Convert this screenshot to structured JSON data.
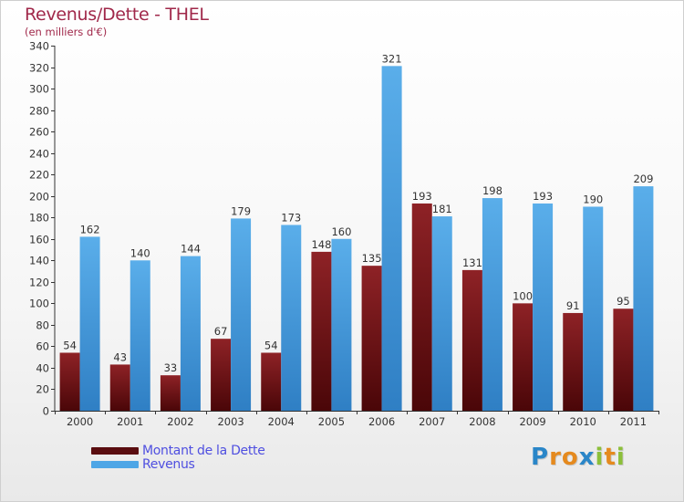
{
  "title": "Revenus/Dette - THEL",
  "subtitle": "(en milliers d'€)",
  "brand": {
    "letters": [
      {
        "ch": "P",
        "color": "#2a86c8"
      },
      {
        "ch": "r",
        "color": "#e58a1e"
      },
      {
        "ch": "o",
        "color": "#e58a1e"
      },
      {
        "ch": "x",
        "color": "#2a86c8"
      },
      {
        "ch": "i",
        "color": "#8cbf3a"
      },
      {
        "ch": "t",
        "color": "#e58a1e"
      },
      {
        "ch": "i",
        "color": "#8cbf3a"
      }
    ]
  },
  "chart_data": {
    "type": "bar",
    "categories": [
      "2000",
      "2001",
      "2002",
      "2003",
      "2004",
      "2005",
      "2006",
      "2007",
      "2008",
      "2009",
      "2010",
      "2011"
    ],
    "series": [
      {
        "name": "Montant de la Dette",
        "color": "#7a1518",
        "values": [
          54,
          43,
          33,
          67,
          54,
          148,
          135,
          193,
          131,
          100,
          91,
          95
        ]
      },
      {
        "name": "Revenus",
        "color": "#4ea6e6",
        "values": [
          162,
          140,
          144,
          179,
          173,
          160,
          321,
          181,
          198,
          193,
          190,
          209
        ]
      }
    ],
    "ylim": [
      0,
      340
    ],
    "ytick_step": 20,
    "grid": false,
    "legend_position": "bottom-left"
  }
}
